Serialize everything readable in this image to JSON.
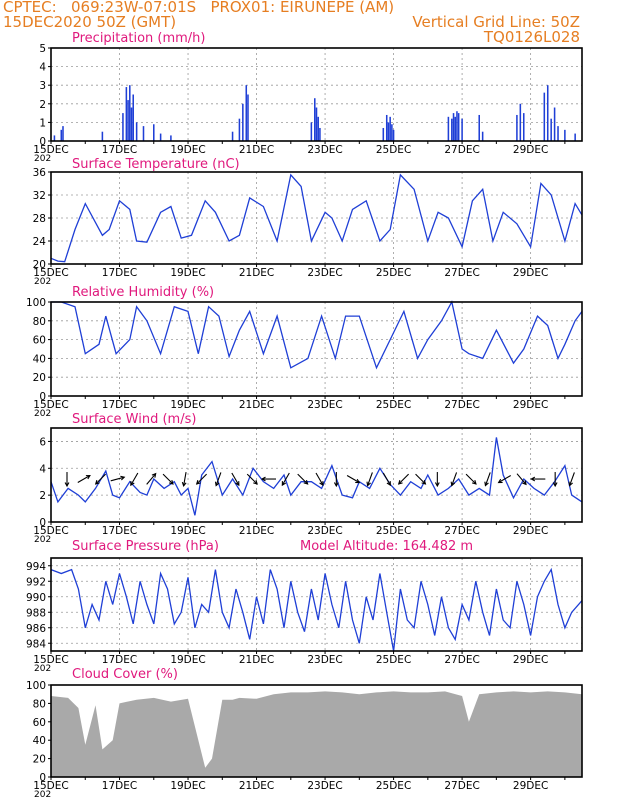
{
  "header": {
    "line1_left": "CPTEC:   069:23W-07:01S   PROX01: EIRUNEPE (AM)",
    "line2_left": "15DEC2020 50Z (GMT)",
    "line2_right": "Vertical Grid Line: 50Z",
    "line3_right": "TQ0126L028"
  },
  "colors": {
    "header": "#e67e22",
    "panel_title": "#e0197d",
    "line": "#1f3fd6",
    "cloud": "#a9a9a9"
  },
  "x_axis": {
    "tick_labels": [
      "15DEC",
      "17DEC",
      "19DEC",
      "21DEC",
      "23DEC",
      "25DEC",
      "27DEC",
      "29DEC"
    ],
    "year_fragment": "202"
  },
  "chart_data": [
    {
      "type": "bar",
      "title": "Precipitation (mm/h)",
      "ylim": [
        0,
        5
      ],
      "yticks": [
        "0",
        "1",
        "2",
        "3",
        "4",
        "5"
      ],
      "grid": true,
      "x_days": [
        0.1,
        0.3,
        0.35,
        1.5,
        2.1,
        2.2,
        2.25,
        2.3,
        2.35,
        2.4,
        2.5,
        2.7,
        3.0,
        3.2,
        3.5,
        5.3,
        5.5,
        5.6,
        5.7,
        5.75,
        7.6,
        7.7,
        7.75,
        7.8,
        7.85,
        9.7,
        9.8,
        9.85,
        9.9,
        9.95,
        10.0,
        11.6,
        11.7,
        11.75,
        11.8,
        11.85,
        11.9,
        12.0,
        12.5,
        12.6,
        13.6,
        13.7,
        13.8,
        14.4,
        14.5,
        14.6,
        14.7,
        14.8,
        15.0,
        15.3
      ],
      "values": [
        0.3,
        0.6,
        0.8,
        0.5,
        1.5,
        2.9,
        2.2,
        3.0,
        1.8,
        2.5,
        1.0,
        0.8,
        0.9,
        0.4,
        0.3,
        0.5,
        1.2,
        2.0,
        3.0,
        2.5,
        1.0,
        2.3,
        1.8,
        1.3,
        0.7,
        0.7,
        1.4,
        1.0,
        1.3,
        0.9,
        0.6,
        1.3,
        1.2,
        1.5,
        1.3,
        1.6,
        1.5,
        1.2,
        1.4,
        0.5,
        1.4,
        2.0,
        1.5,
        2.6,
        3.0,
        1.2,
        1.8,
        0.8,
        0.6,
        0.4
      ]
    },
    {
      "type": "line",
      "title": "Surface Temperature (nC)",
      "ylim": [
        20,
        36
      ],
      "yticks": [
        "20",
        "24",
        "28",
        "32",
        "36"
      ],
      "grid": true,
      "x_days": [
        0,
        0.2,
        0.4,
        0.7,
        1.0,
        1.5,
        1.7,
        2.0,
        2.3,
        2.5,
        2.8,
        3.2,
        3.5,
        3.8,
        4.1,
        4.5,
        4.8,
        5.2,
        5.5,
        5.8,
        6.2,
        6.6,
        7.0,
        7.3,
        7.6,
        8.0,
        8.2,
        8.5,
        8.8,
        9.2,
        9.6,
        9.9,
        10.2,
        10.6,
        11.0,
        11.3,
        11.6,
        12.0,
        12.3,
        12.6,
        12.9,
        13.2,
        13.6,
        14.0,
        14.3,
        14.6,
        15.0,
        15.3,
        15.5
      ],
      "values": [
        21.0,
        20.5,
        20.4,
        26.0,
        30.5,
        25.0,
        26.0,
        31.0,
        29.5,
        24.0,
        23.8,
        29.0,
        30.0,
        24.5,
        25.0,
        31.0,
        29.0,
        24.0,
        25.0,
        31.5,
        30.0,
        24.0,
        35.5,
        33.5,
        24.0,
        29.0,
        28.0,
        24.0,
        29.5,
        31.0,
        24.0,
        26.0,
        35.5,
        33.0,
        24.0,
        29.0,
        28.0,
        23.0,
        31.0,
        33.0,
        24.0,
        29.0,
        27.0,
        23.0,
        34.0,
        32.0,
        24.0,
        30.5,
        28.5
      ]
    },
    {
      "type": "line",
      "title": "Relative Humidity (%)",
      "ylim": [
        0,
        100
      ],
      "yticks": [
        "0",
        "20",
        "40",
        "60",
        "80",
        "100"
      ],
      "grid": true,
      "x_days": [
        0,
        0.3,
        0.7,
        1.0,
        1.4,
        1.6,
        1.9,
        2.3,
        2.5,
        2.8,
        3.2,
        3.6,
        4.0,
        4.3,
        4.6,
        4.9,
        5.2,
        5.5,
        5.8,
        6.2,
        6.6,
        7.0,
        7.5,
        7.9,
        8.3,
        8.6,
        9.0,
        9.5,
        9.9,
        10.3,
        10.7,
        11.0,
        11.4,
        11.7,
        12.0,
        12.2,
        12.6,
        13.0,
        13.5,
        13.8,
        14.2,
        14.5,
        14.8,
        15.0,
        15.3,
        15.5
      ],
      "values": [
        100,
        100,
        95,
        45,
        55,
        85,
        45,
        60,
        95,
        80,
        45,
        95,
        90,
        45,
        95,
        85,
        42,
        70,
        90,
        45,
        85,
        30,
        40,
        85,
        40,
        85,
        85,
        30,
        60,
        90,
        40,
        60,
        80,
        100,
        50,
        45,
        40,
        70,
        35,
        50,
        85,
        75,
        40,
        55,
        80,
        90
      ]
    },
    {
      "type": "line",
      "title": "Surface Wind (m/s)",
      "ylim": [
        0,
        7
      ],
      "yticks": [
        "0",
        "2",
        "4",
        "6"
      ],
      "grid": true,
      "arrow_dirs_deg": [
        180,
        60,
        225,
        75,
        210,
        40,
        135,
        190,
        225,
        200,
        150,
        135,
        270,
        210,
        135,
        150,
        180,
        120,
        200,
        150,
        225,
        135,
        180,
        200,
        135,
        200,
        240,
        140,
        270,
        180,
        200
      ],
      "x_days": [
        0,
        0.2,
        0.5,
        0.8,
        1.0,
        1.3,
        1.6,
        1.8,
        2.0,
        2.3,
        2.6,
        2.8,
        3.0,
        3.3,
        3.6,
        3.8,
        4.0,
        4.2,
        4.4,
        4.7,
        5.0,
        5.3,
        5.6,
        5.9,
        6.2,
        6.5,
        6.8,
        7.0,
        7.3,
        7.6,
        7.9,
        8.2,
        8.5,
        8.8,
        9.0,
        9.3,
        9.6,
        9.9,
        10.2,
        10.5,
        10.8,
        11.0,
        11.3,
        11.6,
        11.9,
        12.2,
        12.5,
        12.8,
        13.0,
        13.2,
        13.5,
        13.8,
        14.1,
        14.4,
        14.7,
        15.0,
        15.2,
        15.5
      ],
      "values": [
        3.0,
        1.5,
        2.5,
        2.0,
        1.5,
        2.5,
        3.8,
        2.0,
        1.8,
        3.0,
        2.2,
        2.0,
        3.2,
        2.5,
        3.0,
        2.0,
        2.5,
        0.5,
        3.5,
        4.5,
        2.0,
        3.2,
        2.0,
        4.0,
        3.0,
        2.5,
        3.5,
        2.0,
        3.0,
        3.0,
        2.5,
        4.2,
        2.0,
        1.8,
        3.0,
        2.5,
        4.0,
        2.8,
        2.0,
        3.0,
        2.5,
        3.5,
        2.0,
        2.5,
        3.2,
        2.0,
        2.5,
        2.0,
        6.3,
        3.5,
        1.8,
        3.2,
        2.5,
        2.0,
        3.0,
        4.2,
        2.0,
        1.5
      ]
    },
    {
      "type": "line",
      "title": "Surface Pressure (hPa)",
      "annotation": "Model Altitude: 164.482  m",
      "ylim": [
        983,
        995
      ],
      "yticks": [
        "984",
        "986",
        "988",
        "990",
        "992",
        "994"
      ],
      "grid": true,
      "x_days": [
        0,
        0.3,
        0.6,
        0.8,
        1.0,
        1.2,
        1.4,
        1.6,
        1.8,
        2.0,
        2.2,
        2.4,
        2.6,
        2.8,
        3.0,
        3.2,
        3.4,
        3.6,
        3.8,
        4.0,
        4.2,
        4.4,
        4.6,
        4.8,
        5.0,
        5.2,
        5.4,
        5.6,
        5.8,
        6.0,
        6.2,
        6.4,
        6.6,
        6.8,
        7.0,
        7.2,
        7.4,
        7.6,
        7.8,
        8.0,
        8.2,
        8.4,
        8.6,
        8.8,
        9.0,
        9.2,
        9.4,
        9.6,
        9.8,
        10.0,
        10.2,
        10.4,
        10.6,
        10.8,
        11.0,
        11.2,
        11.4,
        11.6,
        11.8,
        12.0,
        12.2,
        12.4,
        12.6,
        12.8,
        13.0,
        13.2,
        13.4,
        13.6,
        13.8,
        14.0,
        14.2,
        14.4,
        14.6,
        14.8,
        15.0,
        15.2,
        15.5
      ],
      "values": [
        993.5,
        993.0,
        993.5,
        991.0,
        986.0,
        989.0,
        987.0,
        992.0,
        989.0,
        993.0,
        990.0,
        986.5,
        992.0,
        989.0,
        986.5,
        993.0,
        991.0,
        986.5,
        988.0,
        992.5,
        986.0,
        989.0,
        988.0,
        993.5,
        988.0,
        986.0,
        991.0,
        988.0,
        984.5,
        990.0,
        986.5,
        993.5,
        991.0,
        986.0,
        992.0,
        988.0,
        985.5,
        991.0,
        987.0,
        993.0,
        989.0,
        986.0,
        992.0,
        987.0,
        984.0,
        990.0,
        987.0,
        993.0,
        988.0,
        983.0,
        991.0,
        987.0,
        986.0,
        992.0,
        989.0,
        985.0,
        990.0,
        986.0,
        984.5,
        989.0,
        987.0,
        992.0,
        988.0,
        985.0,
        991.0,
        987.0,
        986.0,
        992.0,
        989.0,
        985.0,
        990.0,
        992.0,
        993.5,
        989.0,
        986.0,
        988.0,
        989.5
      ]
    },
    {
      "type": "area",
      "title": "Cloud Cover (%)",
      "ylim": [
        0,
        100
      ],
      "yticks": [
        "0",
        "20",
        "40",
        "60",
        "80",
        "100"
      ],
      "grid": false,
      "x_days": [
        0,
        0.5,
        0.8,
        1.0,
        1.3,
        1.5,
        1.8,
        2.0,
        2.5,
        3.0,
        3.5,
        4.0,
        4.5,
        4.7,
        5.0,
        5.3,
        5.5,
        6.0,
        6.5,
        7.0,
        7.5,
        8.0,
        8.5,
        9.0,
        9.5,
        10.0,
        10.5,
        11.0,
        11.5,
        12.0,
        12.2,
        12.5,
        13.0,
        13.5,
        14.0,
        14.5,
        15.0,
        15.5
      ],
      "values": [
        88,
        86,
        75,
        35,
        78,
        30,
        40,
        80,
        84,
        86,
        82,
        85,
        10,
        20,
        84,
        84,
        86,
        85,
        90,
        92,
        92,
        93,
        92,
        90,
        92,
        93,
        92,
        92,
        93,
        88,
        60,
        90,
        92,
        93,
        92,
        93,
        92,
        90
      ]
    }
  ]
}
